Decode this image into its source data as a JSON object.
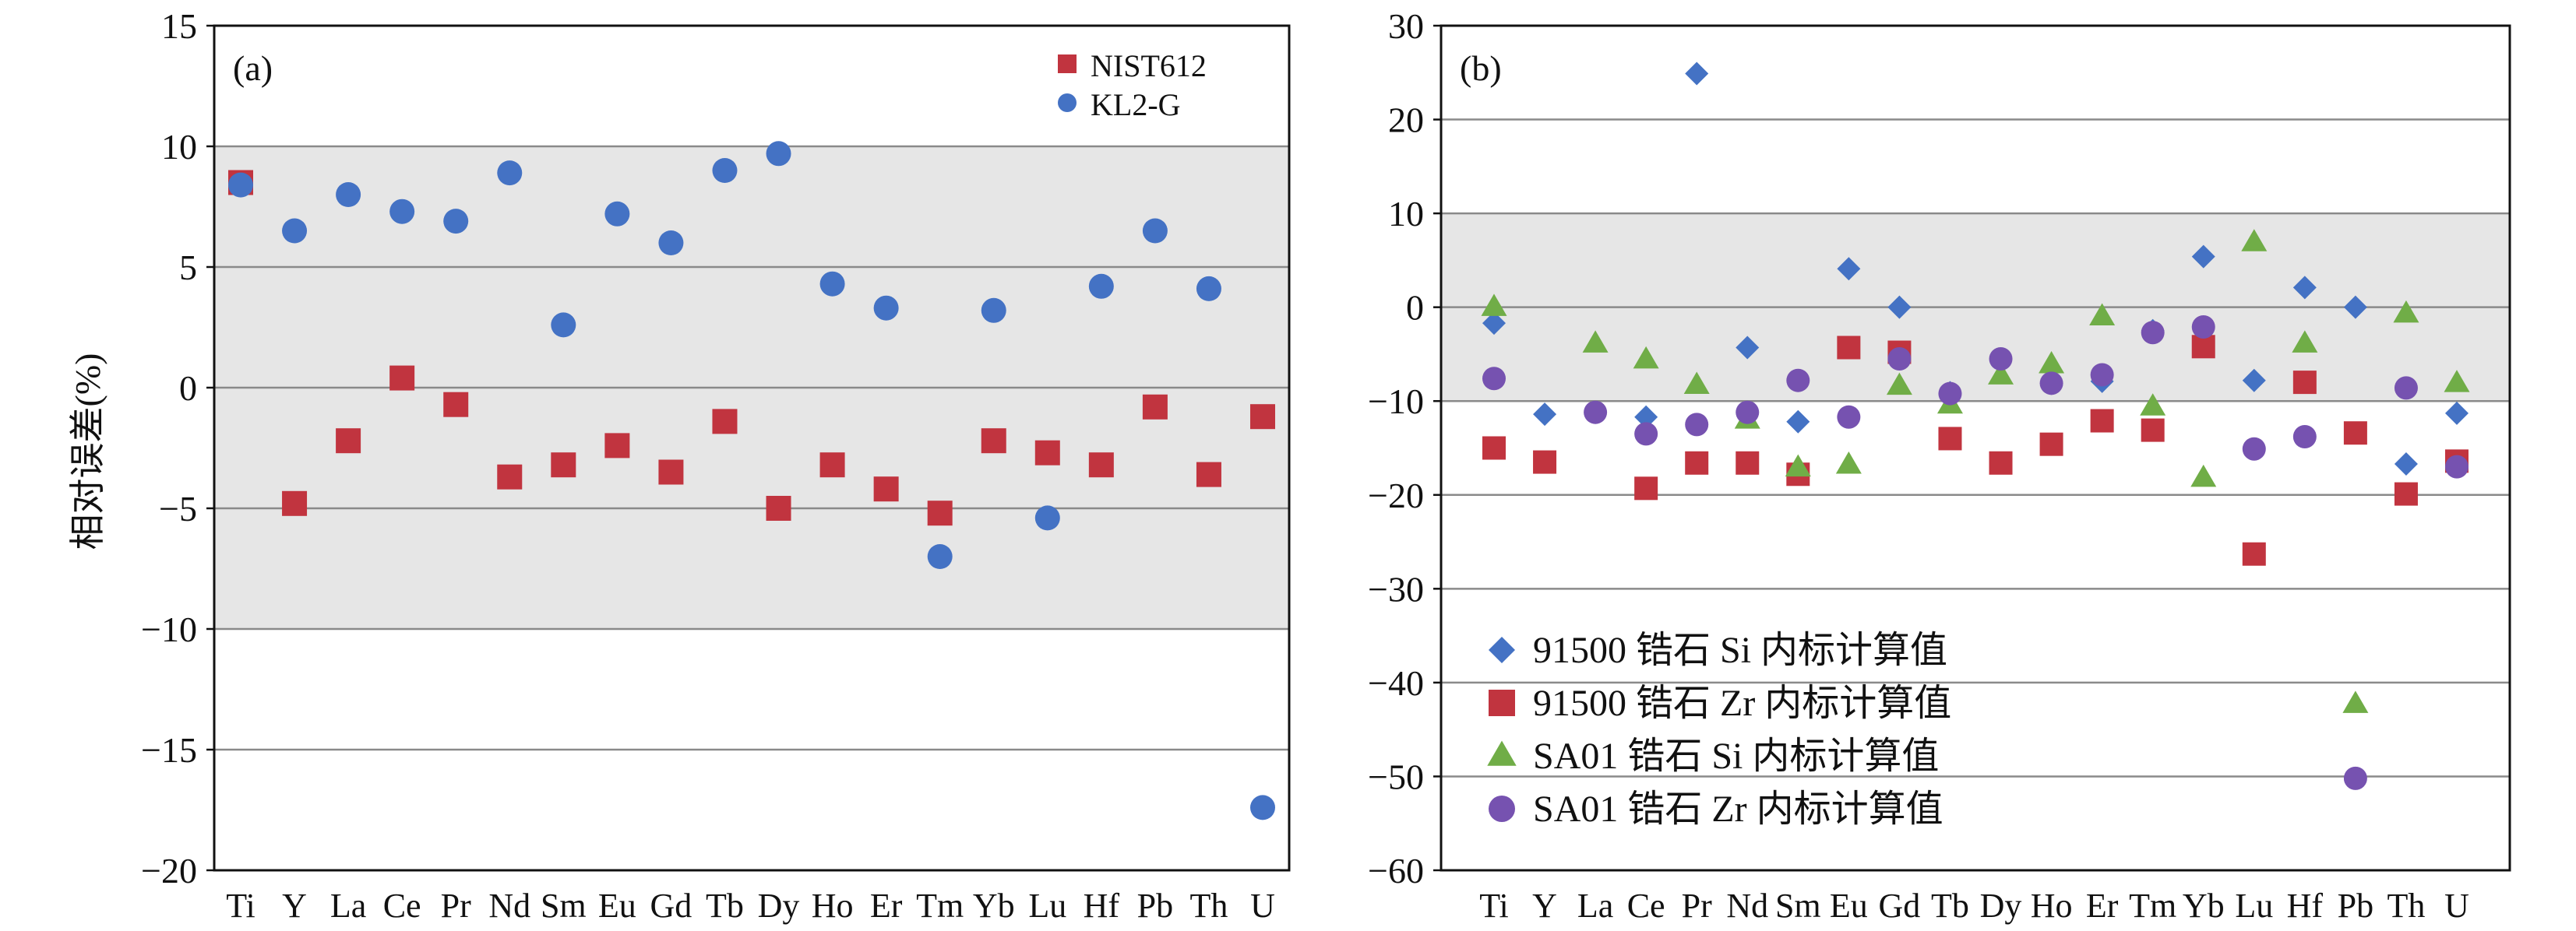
{
  "y_axis_title": "相对误差(%)",
  "chart_data": [
    {
      "type": "scatter",
      "panel_label": "(a)",
      "categories": [
        "Ti",
        "Y",
        "La",
        "Ce",
        "Pr",
        "Nd",
        "Sm",
        "Eu",
        "Gd",
        "Tb",
        "Dy",
        "Ho",
        "Er",
        "Tm",
        "Yb",
        "Lu",
        "Hf",
        "Pb",
        "Th",
        "U"
      ],
      "ylim": [
        -20,
        15
      ],
      "yticks": [
        -20,
        -15,
        -10,
        -5,
        0,
        5,
        10,
        15
      ],
      "ytick_labels": [
        "−20",
        "−15",
        "−10",
        "−5",
        "0",
        "5",
        "10",
        "15"
      ],
      "shaded_band": [
        -10,
        10
      ],
      "grid": true,
      "legend_position": "top-right",
      "series": [
        {
          "name": "NIST612",
          "marker": "square",
          "color": "#c1343f",
          "values": [
            8.5,
            -4.8,
            -2.2,
            0.4,
            -0.7,
            -3.7,
            -3.2,
            -2.4,
            -3.5,
            -1.4,
            -5.0,
            -3.2,
            -4.2,
            -5.2,
            -2.2,
            -2.7,
            -3.2,
            -0.8,
            -3.6,
            -1.2
          ]
        },
        {
          "name": "KL2-G",
          "marker": "circle",
          "color": "#4472c4",
          "values": [
            8.4,
            6.5,
            8.0,
            7.3,
            6.9,
            8.9,
            2.6,
            7.2,
            6.0,
            9.0,
            9.7,
            4.3,
            3.3,
            -7.0,
            3.2,
            -5.4,
            4.2,
            6.5,
            4.1,
            -17.4
          ]
        }
      ]
    },
    {
      "type": "scatter",
      "panel_label": "(b)",
      "categories": [
        "Ti",
        "Y",
        "La",
        "Ce",
        "Pr",
        "Nd",
        "Sm",
        "Eu",
        "Gd",
        "Tb",
        "Dy",
        "Ho",
        "Er",
        "Tm",
        "Yb",
        "Lu",
        "Hf",
        "Pb",
        "Th",
        "U"
      ],
      "ylim": [
        -60,
        30
      ],
      "yticks": [
        -60,
        -50,
        -40,
        -30,
        -20,
        -10,
        0,
        10,
        20,
        30
      ],
      "ytick_labels": [
        "−60",
        "−50",
        "−40",
        "−30",
        "−20",
        "−10",
        "0",
        "10",
        "20",
        "30"
      ],
      "shaded_band": [
        -10,
        10
      ],
      "grid": true,
      "legend_position": "bottom-left",
      "series": [
        {
          "name": "91500 锆石 Si 内标计算值",
          "marker": "diamond",
          "color": "#4472c4",
          "values": [
            -1.7,
            -11.4,
            null,
            -11.7,
            24.9,
            -4.3,
            -12.2,
            4.1,
            0.0,
            -9.1,
            null,
            -8.1,
            -7.9,
            -2.5,
            5.4,
            -7.8,
            2.1,
            0.0,
            -16.7,
            -11.3
          ]
        },
        {
          "name": "91500 锆石 Zr 内标计算值",
          "marker": "square",
          "color": "#c1343f",
          "values": [
            -15.0,
            -16.5,
            null,
            -19.3,
            -16.6,
            -16.6,
            -17.8,
            -4.3,
            -4.8,
            -14.0,
            -16.6,
            -14.6,
            -12.1,
            -13.1,
            -4.2,
            -26.3,
            -8.0,
            -13.4,
            -19.9,
            -16.4
          ]
        },
        {
          "name": "SA01 锆石 Si 内标计算值",
          "marker": "triangle",
          "color": "#70ad47",
          "values": [
            0.0,
            null,
            -3.9,
            -5.6,
            -8.3,
            -12.0,
            -17.1,
            -16.8,
            -8.4,
            -10.4,
            -7.3,
            -6.1,
            -1.0,
            -10.6,
            -18.2,
            6.9,
            -3.9,
            -42.3,
            -0.7,
            -8.1
          ]
        },
        {
          "name": "SA01 锆石 Zr 内标计算值",
          "marker": "circle",
          "color": "#7652b0",
          "values": [
            -7.6,
            null,
            -11.2,
            -13.5,
            -12.5,
            -11.2,
            -7.8,
            -11.7,
            -5.5,
            -9.2,
            -5.5,
            -8.1,
            -7.2,
            -2.7,
            -2.1,
            -15.1,
            -13.8,
            -50.2,
            -8.6,
            -17.0
          ]
        }
      ]
    }
  ]
}
